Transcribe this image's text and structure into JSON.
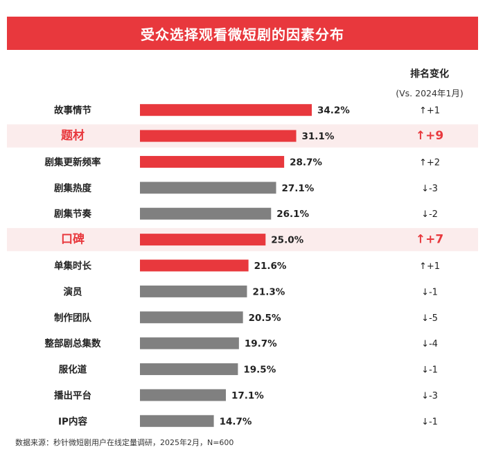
{
  "title": "受众选择观看微短剧的因素分布",
  "rank_header": "排名变化",
  "rank_subheader": "(Vs. 2024年1月)",
  "source": "数据来源：秒针微短剧用户在线定量调研，2025年2月，N=600",
  "colors": {
    "title_bg": "#e8383d",
    "bar_up": "#e8383d",
    "bar_down": "#808080",
    "highlight_bg": "#fbecec",
    "highlight_text": "#e8383d"
  },
  "chart_data": {
    "type": "bar",
    "orientation": "horizontal",
    "categories": [
      "故事情节",
      "题材",
      "剧集更新频率",
      "剧集热度",
      "剧集节奏",
      "口碑",
      "单集时长",
      "演员",
      "制作团队",
      "整部剧总集数",
      "服化道",
      "播出平台",
      "IP内容"
    ],
    "values": [
      34.2,
      31.1,
      28.7,
      27.1,
      26.1,
      25.0,
      21.6,
      21.3,
      20.5,
      19.7,
      19.5,
      17.1,
      14.7
    ],
    "value_labels": [
      "34.2%",
      "31.1%",
      "28.7%",
      "27.1%",
      "26.1%",
      "25.0%",
      "21.6%",
      "21.3%",
      "20.5%",
      "19.7%",
      "19.5%",
      "17.1%",
      "14.7%"
    ],
    "rank_change": [
      "↑+1",
      "↑+9",
      "↑+2",
      "↓-3",
      "↓-2",
      "↑+7",
      "↑+1",
      "↓-1",
      "↓-5",
      "↓-4",
      "↓-1",
      "↓-3",
      "↓-1"
    ],
    "direction": [
      "up",
      "up",
      "up",
      "down",
      "down",
      "up",
      "up",
      "down",
      "down",
      "down",
      "down",
      "down",
      "down"
    ],
    "highlighted": [
      false,
      true,
      false,
      false,
      false,
      true,
      false,
      false,
      false,
      false,
      false,
      false,
      false
    ],
    "unit": "%"
  }
}
